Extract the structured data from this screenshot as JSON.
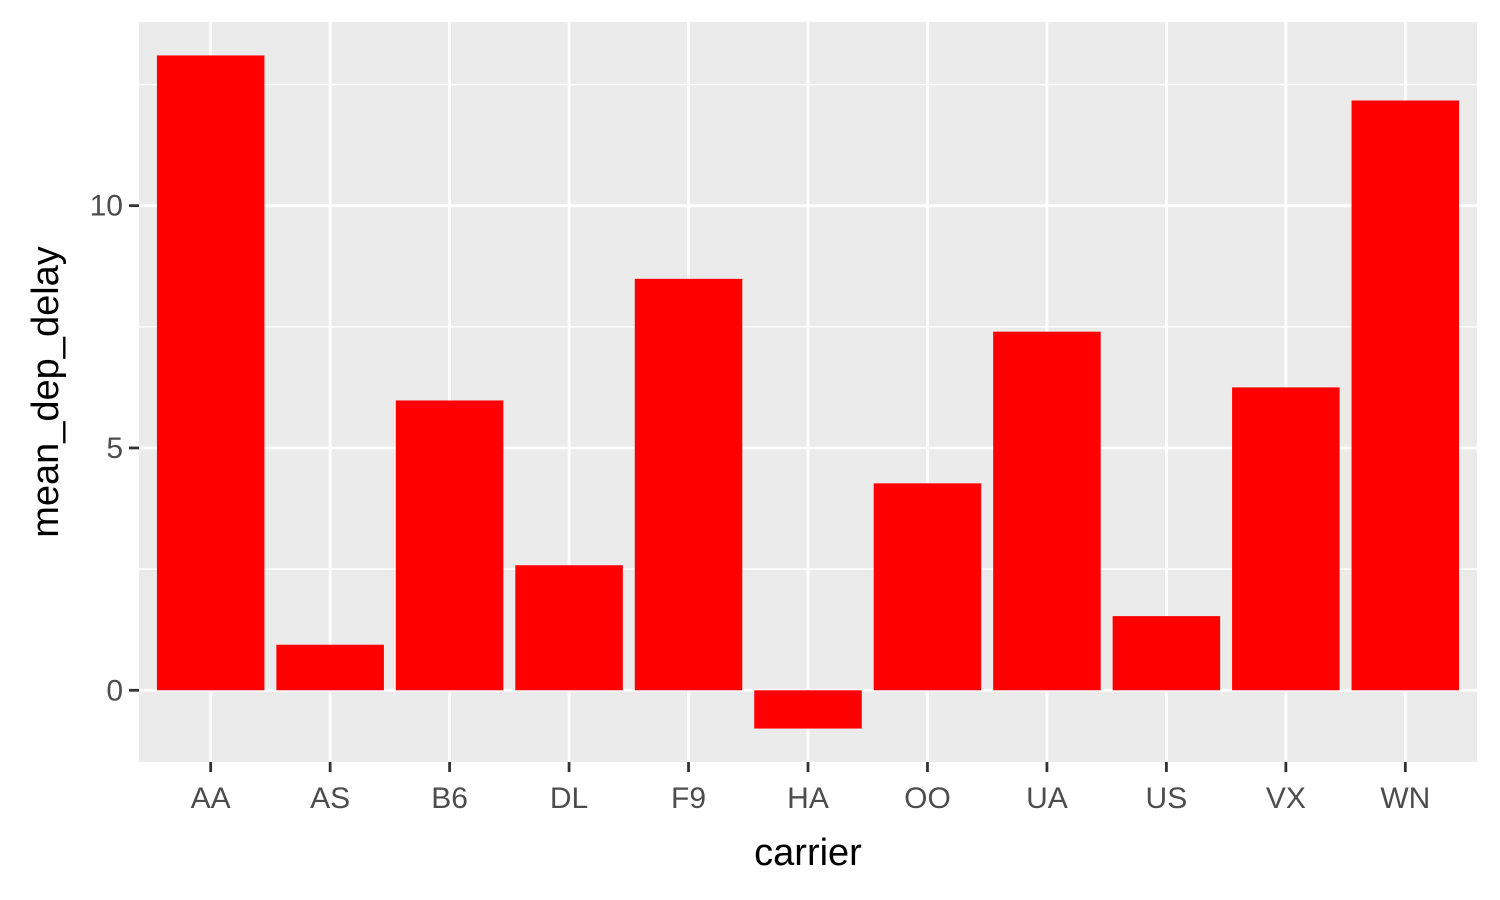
{
  "chart_data": {
    "type": "bar",
    "categories": [
      "AA",
      "AS",
      "B6",
      "DL",
      "F9",
      "HA",
      "OO",
      "UA",
      "US",
      "VX",
      "WN"
    ],
    "values": [
      13.1,
      0.94,
      5.98,
      2.58,
      8.49,
      -0.79,
      4.27,
      7.4,
      1.53,
      6.25,
      12.17
    ],
    "xlabel": "carrier",
    "ylabel": "mean_dep_delay",
    "yticks": [
      0,
      5,
      10
    ],
    "ytick_labels": [
      "0",
      "5",
      "10"
    ],
    "ylim": [
      -1.48,
      13.79
    ],
    "bar_color": "#ff0000",
    "panel_background": "#ebebeb",
    "grid_color": "#ffffff",
    "grid": true
  }
}
